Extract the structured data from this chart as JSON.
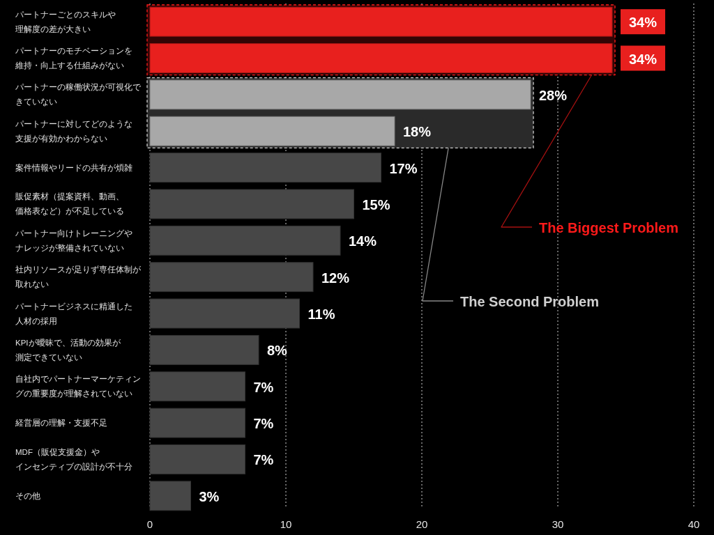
{
  "chart_data": {
    "type": "bar",
    "orientation": "horizontal",
    "categories": [
      "パートナーごとのスキルや理解度の差が大きい",
      "パートナーのモチベーションを維持・向上する仕組みがない",
      "パートナーの稼働状況が可視化できていない",
      "パートナーに対してどのような支援が有効かわからない",
      "案件情報やリードの共有が煩雑",
      "販促素材（提案資料、動画、価格表など）が不足している",
      "パートナー向けトレーニングやナレッジが整備されていない",
      "社内リソースが足りず専任体制が取れない",
      "パートナービジネスに精通した人材の採用",
      "KPIが曖昧で、活動の効果が測定できていない",
      "自社内でパートナーマーケティングの重要度が理解されていない",
      "経営層の理解・支援不足",
      "MDF（販促支援金）やインセンティブの設計が不十分",
      "その他"
    ],
    "values": [
      34,
      34,
      28,
      18,
      17,
      15,
      14,
      12,
      11,
      8,
      7,
      7,
      7,
      3
    ],
    "value_labels": [
      "34%",
      "34%",
      "28%",
      "18%",
      "17%",
      "15%",
      "14%",
      "12%",
      "11%",
      "8%",
      "7%",
      "7%",
      "7%",
      "3%"
    ],
    "colors": [
      "#e8201e",
      "#e8201e",
      "#a8a8a8",
      "#a8a8a8",
      "#474747",
      "#474747",
      "#474747",
      "#474747",
      "#474747",
      "#474747",
      "#474747",
      "#474747",
      "#474747",
      "#474747"
    ],
    "xlim": [
      0,
      40
    ],
    "xticks": [
      0,
      10,
      20,
      30,
      40
    ],
    "grid": "x",
    "bands": [
      {
        "axis": "y",
        "from": "パートナーごとのスキルや理解度の差が大きい",
        "to": "パートナーのモチベーションを維持・向上する仕組みがない",
        "label": "The Biggest Problem",
        "color": "#ff1a1a"
      },
      {
        "axis": "y",
        "from": "パートナーの稼働状況が可視化できていない",
        "to": "パートナーに対してどのような支援が有効かわからない",
        "label": "The Second Problem",
        "color": "#d0d0d0"
      }
    ]
  }
}
